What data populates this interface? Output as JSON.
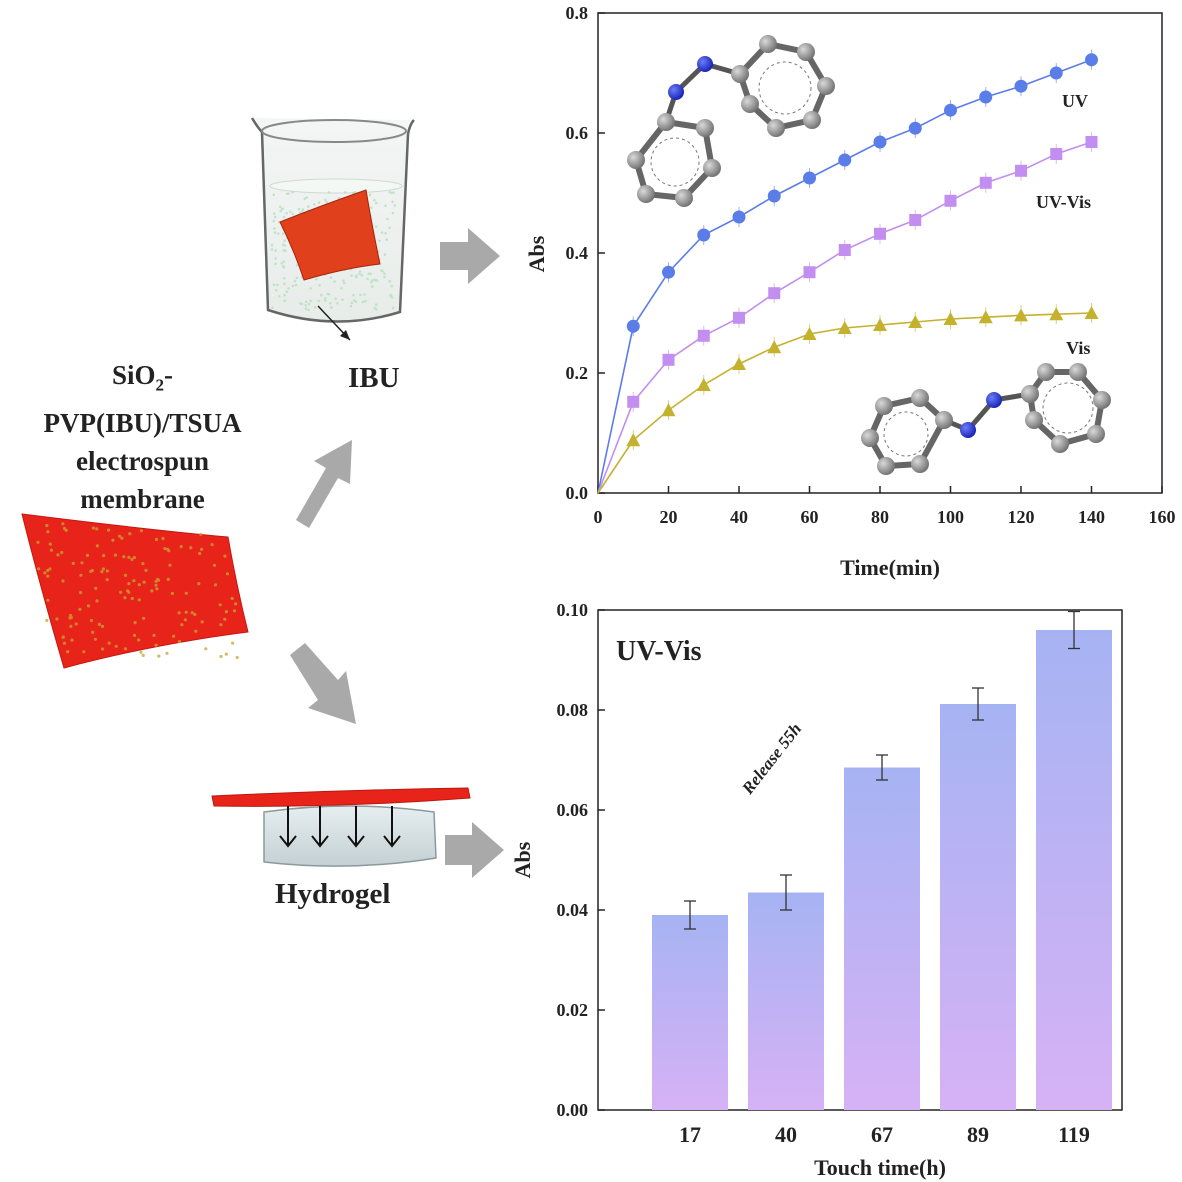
{
  "labels": {
    "membrane_line1": "SiO",
    "membrane_sub": "2",
    "membrane_line1_suffix": "-",
    "membrane_line2": "PVP(IBU)/TSUA",
    "membrane_line3": "electrospun",
    "membrane_line4": "membrane",
    "ibu": "IBU",
    "hydrogel": "Hydrogel"
  },
  "colors": {
    "membrane": "#e8231a",
    "arrow": "#a9a9a9",
    "uv": "#5b7de8",
    "uvvis": "#c28ef0",
    "vis": "#c4b22e",
    "bar_top": "#a6b3f3",
    "bar_bottom": "#d6b2f5",
    "nitrogen": "#2130d6",
    "carbon": "#8a8a8a"
  },
  "chart_data": [
    {
      "type": "line",
      "xlabel": "Time(min)",
      "ylabel": "Abs",
      "xlim": [
        0,
        160
      ],
      "ylim": [
        0,
        0.8
      ],
      "xticks": [
        0,
        20,
        40,
        60,
        80,
        100,
        120,
        140,
        160
      ],
      "yticks": [
        "0.0",
        "0.2",
        "0.4",
        "0.6",
        "0.8"
      ],
      "x": [
        0,
        10,
        20,
        30,
        40,
        50,
        60,
        70,
        80,
        90,
        100,
        110,
        120,
        130,
        140
      ],
      "series": [
        {
          "name": "UV",
          "marker": "circle",
          "color": "#5b7de8",
          "values": [
            0,
            0.278,
            0.368,
            0.43,
            0.46,
            0.495,
            0.525,
            0.555,
            0.585,
            0.608,
            0.638,
            0.66,
            0.678,
            0.7,
            0.722
          ]
        },
        {
          "name": "UV-Vis",
          "marker": "square",
          "color": "#c28ef0",
          "values": [
            0,
            0.152,
            0.222,
            0.262,
            0.292,
            0.333,
            0.368,
            0.405,
            0.432,
            0.455,
            0.487,
            0.517,
            0.537,
            0.565,
            0.585
          ]
        },
        {
          "name": "Vis",
          "marker": "triangle",
          "color": "#c4b22e",
          "values": [
            0,
            0.088,
            0.138,
            0.18,
            0.215,
            0.243,
            0.265,
            0.275,
            0.28,
            0.285,
            0.29,
            0.293,
            0.296,
            0.298,
            0.3
          ]
        }
      ]
    },
    {
      "type": "bar",
      "title": "UV-Vis",
      "annotation": "Release 55h",
      "xlabel": "Touch time(h)",
      "ylabel": "Abs",
      "ylim": [
        0,
        0.1
      ],
      "yticks": [
        "0.00",
        "0.02",
        "0.04",
        "0.06",
        "0.08",
        "0.10"
      ],
      "categories": [
        "17",
        "40",
        "67",
        "89",
        "119"
      ],
      "values": [
        0.039,
        0.0435,
        0.0685,
        0.0812,
        0.096
      ],
      "errors": [
        0.0028,
        0.0035,
        0.0025,
        0.0032,
        0.0037
      ]
    }
  ]
}
